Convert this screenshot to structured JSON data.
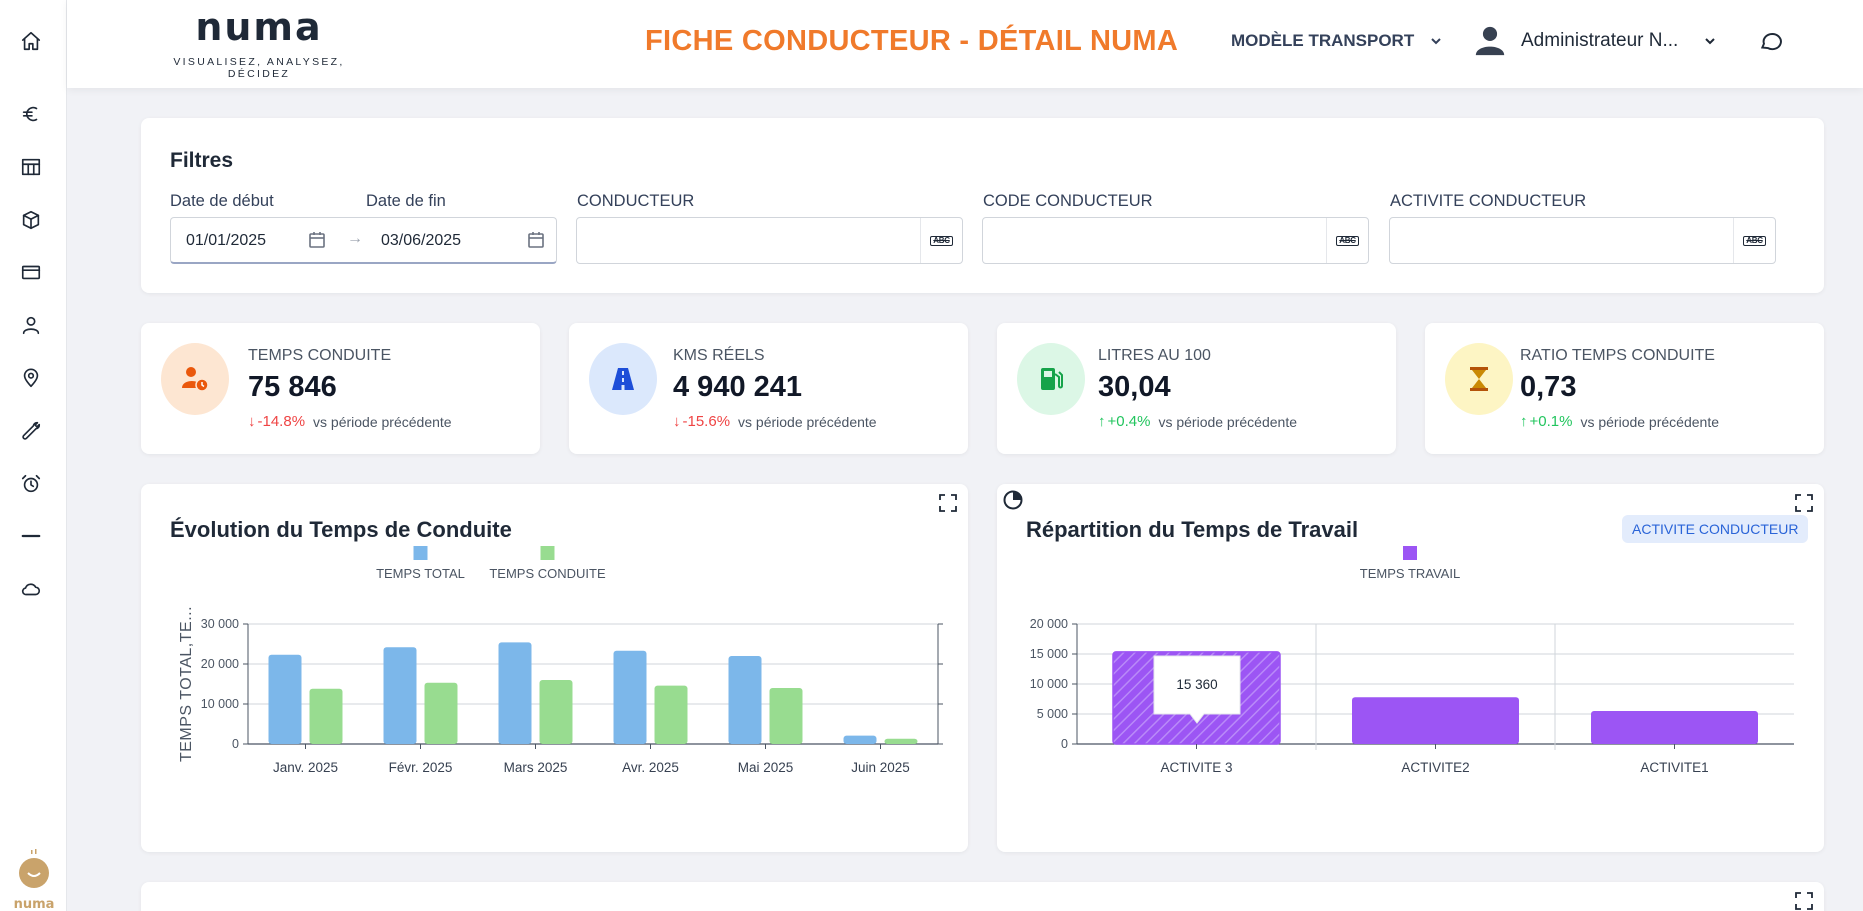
{
  "header": {
    "brand_name": "numa",
    "brand_tagline": "VISUALISEZ, ANALYSEZ, DÉCIDEZ",
    "page_title": "FICHE CONDUCTEUR - DÉTAIL NUMA",
    "model_select": "MODÈLE TRANSPORT",
    "user_name": "Administrateur N..."
  },
  "sidebar": {
    "items": [
      "home-icon",
      "euro-icon",
      "table-icon",
      "box-icon",
      "card-icon",
      "user-icon",
      "location-icon",
      "wrench-icon",
      "alarm-icon",
      "minus-icon",
      "cloud-icon"
    ],
    "bottom_logo": "numa"
  },
  "filters": {
    "title": "Filtres",
    "start_label": "Date de début",
    "end_label": "Date de fin",
    "start_value": "01/01/2025",
    "end_value": "03/06/2025",
    "conducteur_label": "CONDUCTEUR",
    "code_label": "CODE CONDUCTEUR",
    "activite_label": "ACTIVITE CONDUCTEUR",
    "abc": "ABC"
  },
  "kpis": [
    {
      "label": "TEMPS CONDUITE",
      "value": "75 846",
      "delta": "-14.8%",
      "direction": "down",
      "compare": "vs période précédente",
      "color": "#f97316",
      "bg": "#fde6d2",
      "icon": "driver-clock-icon"
    },
    {
      "label": "KMS RÉELS",
      "value": "4 940 241",
      "delta": "-15.6%",
      "direction": "down",
      "compare": "vs période précédente",
      "color": "#2563eb",
      "bg": "#dbe8fc",
      "icon": "road-icon"
    },
    {
      "label": "LITRES AU 100",
      "value": "30,04",
      "delta": "+0.4%",
      "direction": "up",
      "compare": "vs période précédente",
      "color": "#16a34a",
      "bg": "#dcf7e6",
      "icon": "fuel-pump-icon"
    },
    {
      "label": "RATIO TEMPS CONDUITE",
      "value": "0,73",
      "delta": "+0.1%",
      "direction": "up",
      "compare": "vs période précédente",
      "color": "#ca8a04",
      "bg": "#fdf5c4",
      "icon": "hourglass-icon"
    }
  ],
  "chart_left": {
    "title": "Évolution du Temps de Conduite",
    "ylabel": "TEMPS TOTAL,TE..."
  },
  "chart_right": {
    "title": "Répartition du Temps de Travail",
    "badge": "ACTIVITE CONDUCTEUR",
    "tooltip": "15 360"
  },
  "chart_data": [
    {
      "type": "bar",
      "title": "Évolution du Temps de Conduite",
      "ylabel": "TEMPS TOTAL,TE...",
      "categories": [
        "Janv. 2025",
        "Févr. 2025",
        "Mars 2025",
        "Avr. 2025",
        "Mai 2025",
        "Juin 2025"
      ],
      "series": [
        {
          "name": "TEMPS TOTAL",
          "color": "#7cb7ea",
          "values": [
            22300,
            24200,
            25400,
            23300,
            22000,
            2100
          ]
        },
        {
          "name": "TEMPS CONDUITE",
          "color": "#98dc90",
          "values": [
            13800,
            15300,
            16000,
            14600,
            14000,
            1300
          ]
        }
      ],
      "yticks": [
        "0",
        "10 000",
        "20 000",
        "30 000"
      ],
      "ylim": [
        0,
        30000
      ],
      "legend": "top-center",
      "grid": true
    },
    {
      "type": "bar",
      "title": "Répartition du Temps de Travail",
      "categories": [
        "ACTIVITE 3",
        "ACTIVITE2",
        "ACTIVITE1"
      ],
      "series": [
        {
          "name": "TEMPS TRAVAIL",
          "color": "#9c55f4",
          "values": [
            15360,
            7800,
            5500
          ]
        }
      ],
      "yticks": [
        "0",
        "5 000",
        "10 000",
        "15 000",
        "20 000"
      ],
      "ylim": [
        0,
        20000
      ],
      "legend": "top-center",
      "grid": true
    }
  ]
}
